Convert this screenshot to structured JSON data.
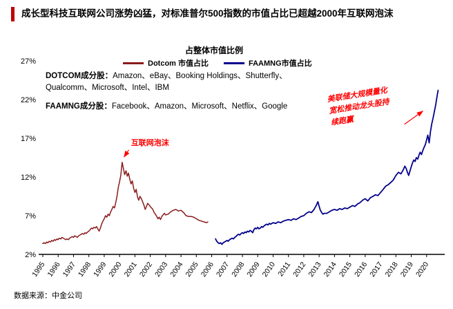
{
  "header": {
    "title": "成长型科技互联网公司涨势凶猛，对标准普尔500指数的市值占比已超越2000年互联网泡沫",
    "accent_color": "#c00000"
  },
  "source": "数据来源：中金公司",
  "chart_data": {
    "type": "line",
    "title": "占整体市值比例",
    "xlabel": "",
    "ylabel": "",
    "ylim": [
      2,
      27
    ],
    "xlim": [
      1995,
      2021
    ],
    "yticks": [
      2,
      7,
      12,
      17,
      22,
      27
    ],
    "ytick_suffix": "%",
    "xticks": [
      1995,
      1996,
      1997,
      1998,
      1999,
      2000,
      2001,
      2002,
      2003,
      2004,
      2005,
      2006,
      2007,
      2008,
      2009,
      2010,
      2011,
      2012,
      2013,
      2014,
      2015,
      2016,
      2017,
      2018,
      2019,
      2020
    ],
    "grid": false,
    "legend_position": "top-center",
    "legend": [
      {
        "label": "Dotcom 市值占比",
        "color": "#8b1a1a"
      },
      {
        "label": "FAAMNG市值占比",
        "color": "#00008b"
      }
    ],
    "notes": {
      "dotcom_label": "DOTCOM成分股：",
      "dotcom_list": "Amazon、eBay、Booking Holdings、Shutterfly、\nQualcomm、Microsoft、Intel、IBM",
      "faamng_label": "FAAMNG成分股：",
      "faamng_list": "Facebook、Amazon、Microsoft、Netflix、Google"
    },
    "annotations": [
      {
        "name": "dotcom-bubble-note",
        "text": "互联网泡沫",
        "color": "#ff0000",
        "size": 11,
        "italic": false,
        "rotate": 0,
        "anchor": [
          2000.75,
          16.1
        ],
        "line_height": 17,
        "arrow": {
          "from": [
            2000.6,
            15.5
          ],
          "to": [
            2000.3,
            14.6
          ]
        }
      },
      {
        "name": "fed-qe-note",
        "lines": [
          "美联储大规模量化",
          "宽松推动龙头股持",
          "续跑赢"
        ],
        "color": "#ff0000",
        "size": 11,
        "italic": true,
        "rotate": -9,
        "anchor": [
          2013.55,
          21.7
        ],
        "line_height": 17,
        "arrow": {
          "from": [
            2018.55,
            18.8
          ],
          "to": [
            2019.75,
            20.5
          ]
        }
      }
    ],
    "series": [
      {
        "name": "Dotcom 市值占比",
        "color": "#8b1a1a",
        "width": 1.5,
        "points": [
          [
            1995.0,
            3.4
          ],
          [
            1995.08,
            3.5
          ],
          [
            1995.17,
            3.4
          ],
          [
            1995.25,
            3.6
          ],
          [
            1995.33,
            3.5
          ],
          [
            1995.42,
            3.7
          ],
          [
            1995.5,
            3.6
          ],
          [
            1995.58,
            3.8
          ],
          [
            1995.67,
            3.7
          ],
          [
            1995.75,
            3.9
          ],
          [
            1995.83,
            3.8
          ],
          [
            1995.92,
            4.0
          ],
          [
            1996.0,
            3.9
          ],
          [
            1996.08,
            4.1
          ],
          [
            1996.17,
            4.0
          ],
          [
            1996.25,
            4.2
          ],
          [
            1996.33,
            4.1
          ],
          [
            1996.42,
            4.0
          ],
          [
            1996.5,
            3.9
          ],
          [
            1996.58,
            4.0
          ],
          [
            1996.67,
            3.9
          ],
          [
            1996.75,
            4.1
          ],
          [
            1996.83,
            4.2
          ],
          [
            1996.92,
            4.3
          ],
          [
            1997.0,
            4.2
          ],
          [
            1997.08,
            4.4
          ],
          [
            1997.17,
            4.3
          ],
          [
            1997.25,
            4.2
          ],
          [
            1997.33,
            4.4
          ],
          [
            1997.42,
            4.5
          ],
          [
            1997.5,
            4.6
          ],
          [
            1997.58,
            4.7
          ],
          [
            1997.67,
            4.6
          ],
          [
            1997.75,
            4.8
          ],
          [
            1997.83,
            4.7
          ],
          [
            1997.92,
            4.9
          ],
          [
            1998.0,
            5.0
          ],
          [
            1998.08,
            5.2
          ],
          [
            1998.17,
            5.4
          ],
          [
            1998.25,
            5.3
          ],
          [
            1998.33,
            5.5
          ],
          [
            1998.42,
            5.4
          ],
          [
            1998.5,
            5.6
          ],
          [
            1998.58,
            5.3
          ],
          [
            1998.67,
            5.0
          ],
          [
            1998.75,
            5.4
          ],
          [
            1998.83,
            5.9
          ],
          [
            1998.92,
            6.3
          ],
          [
            1999.0,
            6.6
          ],
          [
            1999.08,
            7.0
          ],
          [
            1999.17,
            6.8
          ],
          [
            1999.25,
            7.2
          ],
          [
            1999.33,
            7.0
          ],
          [
            1999.42,
            7.5
          ],
          [
            1999.5,
            7.8
          ],
          [
            1999.58,
            8.2
          ],
          [
            1999.67,
            8.0
          ],
          [
            1999.75,
            8.7
          ],
          [
            1999.83,
            9.5
          ],
          [
            1999.92,
            10.7
          ],
          [
            2000.0,
            11.4
          ],
          [
            2000.08,
            12.2
          ],
          [
            2000.17,
            13.9
          ],
          [
            2000.25,
            13.1
          ],
          [
            2000.33,
            12.3
          ],
          [
            2000.42,
            12.8
          ],
          [
            2000.5,
            12.1
          ],
          [
            2000.58,
            12.5
          ],
          [
            2000.67,
            11.7
          ],
          [
            2000.75,
            11.1
          ],
          [
            2000.83,
            11.5
          ],
          [
            2000.92,
            10.5
          ],
          [
            2001.0,
            10.0
          ],
          [
            2001.08,
            10.4
          ],
          [
            2001.17,
            9.4
          ],
          [
            2001.25,
            9.0
          ],
          [
            2001.33,
            9.5
          ],
          [
            2001.42,
            9.2
          ],
          [
            2001.5,
            8.8
          ],
          [
            2001.58,
            8.4
          ],
          [
            2001.67,
            7.8
          ],
          [
            2001.75,
            8.2
          ],
          [
            2001.83,
            8.6
          ],
          [
            2001.92,
            8.4
          ],
          [
            2002.0,
            8.2
          ],
          [
            2002.08,
            8.0
          ],
          [
            2002.17,
            7.8
          ],
          [
            2002.25,
            7.4
          ],
          [
            2002.33,
            7.2
          ],
          [
            2002.42,
            6.9
          ],
          [
            2002.5,
            6.6
          ],
          [
            2002.58,
            6.8
          ],
          [
            2002.67,
            6.5
          ],
          [
            2002.75,
            6.9
          ],
          [
            2002.83,
            7.1
          ],
          [
            2002.92,
            7.3
          ],
          [
            2003.0,
            7.1
          ],
          [
            2003.17,
            7.2
          ],
          [
            2003.33,
            7.5
          ],
          [
            2003.5,
            7.7
          ],
          [
            2003.67,
            7.8
          ],
          [
            2003.83,
            7.6
          ],
          [
            2004.0,
            7.7
          ],
          [
            2004.17,
            7.4
          ],
          [
            2004.33,
            7.0
          ],
          [
            2004.5,
            6.9
          ],
          [
            2004.67,
            6.9
          ],
          [
            2004.83,
            6.8
          ],
          [
            2005.0,
            6.6
          ],
          [
            2005.17,
            6.4
          ],
          [
            2005.33,
            6.3
          ],
          [
            2005.5,
            6.2
          ],
          [
            2005.67,
            6.1
          ],
          [
            2005.75,
            6.2
          ]
        ]
      },
      {
        "name": "FAAMNG市值占比",
        "color": "#00008b",
        "width": 1.8,
        "points": [
          [
            2006.25,
            4.0
          ],
          [
            2006.33,
            3.7
          ],
          [
            2006.42,
            3.5
          ],
          [
            2006.5,
            3.4
          ],
          [
            2006.58,
            3.5
          ],
          [
            2006.67,
            3.3
          ],
          [
            2006.75,
            3.5
          ],
          [
            2006.83,
            3.6
          ],
          [
            2006.92,
            3.7
          ],
          [
            2007.0,
            3.8
          ],
          [
            2007.08,
            3.7
          ],
          [
            2007.17,
            3.9
          ],
          [
            2007.25,
            4.0
          ],
          [
            2007.33,
            4.1
          ],
          [
            2007.42,
            4.0
          ],
          [
            2007.5,
            4.2
          ],
          [
            2007.58,
            4.3
          ],
          [
            2007.67,
            4.5
          ],
          [
            2007.75,
            4.6
          ],
          [
            2007.83,
            4.5
          ],
          [
            2007.92,
            4.7
          ],
          [
            2008.0,
            4.8
          ],
          [
            2008.08,
            4.7
          ],
          [
            2008.17,
            4.9
          ],
          [
            2008.25,
            4.8
          ],
          [
            2008.33,
            5.0
          ],
          [
            2008.42,
            4.9
          ],
          [
            2008.5,
            5.1
          ],
          [
            2008.58,
            5.0
          ],
          [
            2008.67,
            4.8
          ],
          [
            2008.75,
            5.2
          ],
          [
            2008.83,
            5.4
          ],
          [
            2008.92,
            5.3
          ],
          [
            2009.0,
            5.5
          ],
          [
            2009.08,
            5.3
          ],
          [
            2009.17,
            5.4
          ],
          [
            2009.25,
            5.6
          ],
          [
            2009.33,
            5.5
          ],
          [
            2009.42,
            5.7
          ],
          [
            2009.5,
            5.8
          ],
          [
            2009.58,
            5.9
          ],
          [
            2009.67,
            5.8
          ],
          [
            2009.75,
            6.0
          ],
          [
            2009.83,
            5.9
          ],
          [
            2009.92,
            6.0
          ],
          [
            2010.0,
            6.1
          ],
          [
            2010.17,
            6.0
          ],
          [
            2010.33,
            6.2
          ],
          [
            2010.5,
            6.1
          ],
          [
            2010.67,
            6.3
          ],
          [
            2010.83,
            6.4
          ],
          [
            2011.0,
            6.5
          ],
          [
            2011.17,
            6.4
          ],
          [
            2011.33,
            6.6
          ],
          [
            2011.5,
            6.5
          ],
          [
            2011.67,
            6.7
          ],
          [
            2011.83,
            6.9
          ],
          [
            2012.0,
            7.0
          ],
          [
            2012.17,
            7.3
          ],
          [
            2012.33,
            7.5
          ],
          [
            2012.5,
            7.4
          ],
          [
            2012.67,
            7.8
          ],
          [
            2012.83,
            8.4
          ],
          [
            2012.92,
            8.8
          ],
          [
            2013.0,
            8.2
          ],
          [
            2013.08,
            7.7
          ],
          [
            2013.17,
            7.4
          ],
          [
            2013.25,
            7.2
          ],
          [
            2013.33,
            7.3
          ],
          [
            2013.5,
            7.3
          ],
          [
            2013.67,
            7.5
          ],
          [
            2013.83,
            7.7
          ],
          [
            2014.0,
            7.8
          ],
          [
            2014.17,
            7.7
          ],
          [
            2014.33,
            7.9
          ],
          [
            2014.5,
            7.8
          ],
          [
            2014.67,
            8.0
          ],
          [
            2014.83,
            7.9
          ],
          [
            2015.0,
            8.1
          ],
          [
            2015.17,
            8.3
          ],
          [
            2015.33,
            8.2
          ],
          [
            2015.5,
            8.5
          ],
          [
            2015.67,
            8.7
          ],
          [
            2015.83,
            9.0
          ],
          [
            2016.0,
            9.2
          ],
          [
            2016.17,
            8.9
          ],
          [
            2016.33,
            9.3
          ],
          [
            2016.5,
            9.5
          ],
          [
            2016.67,
            9.7
          ],
          [
            2016.83,
            9.6
          ],
          [
            2017.0,
            10.0
          ],
          [
            2017.17,
            10.4
          ],
          [
            2017.33,
            10.8
          ],
          [
            2017.5,
            11.0
          ],
          [
            2017.67,
            11.3
          ],
          [
            2017.83,
            11.6
          ],
          [
            2018.0,
            12.2
          ],
          [
            2018.17,
            12.6
          ],
          [
            2018.33,
            12.4
          ],
          [
            2018.5,
            13.0
          ],
          [
            2018.58,
            13.4
          ],
          [
            2018.67,
            13.1
          ],
          [
            2018.75,
            12.6
          ],
          [
            2018.83,
            12.2
          ],
          [
            2018.92,
            12.8
          ],
          [
            2019.0,
            13.3
          ],
          [
            2019.08,
            13.8
          ],
          [
            2019.17,
            14.2
          ],
          [
            2019.25,
            14.0
          ],
          [
            2019.33,
            14.5
          ],
          [
            2019.42,
            14.3
          ],
          [
            2019.5,
            14.8
          ],
          [
            2019.58,
            15.2
          ],
          [
            2019.67,
            14.9
          ],
          [
            2019.75,
            15.4
          ],
          [
            2019.83,
            15.8
          ],
          [
            2019.92,
            16.2
          ],
          [
            2020.0,
            16.8
          ],
          [
            2020.08,
            17.4
          ],
          [
            2020.17,
            16.4
          ],
          [
            2020.25,
            17.8
          ],
          [
            2020.33,
            18.8
          ],
          [
            2020.42,
            19.6
          ],
          [
            2020.5,
            20.4
          ],
          [
            2020.58,
            21.2
          ],
          [
            2020.67,
            22.3
          ],
          [
            2020.75,
            23.2
          ]
        ]
      }
    ]
  }
}
